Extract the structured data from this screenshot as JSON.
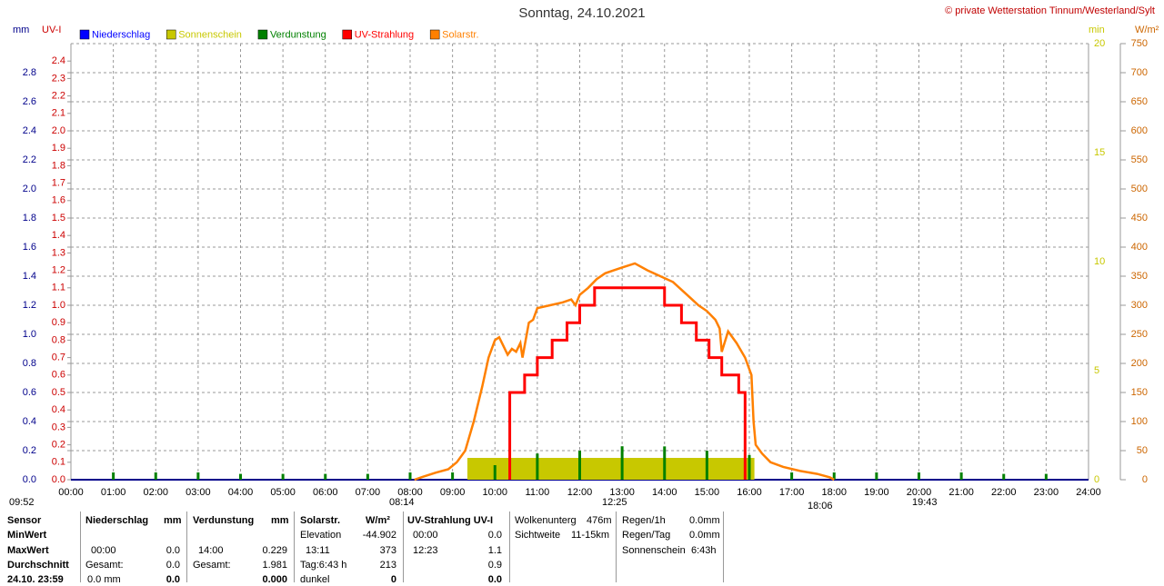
{
  "chart_data": {
    "type": "line",
    "title": "Sonntag, 24.10.2021",
    "copyright": "© private Wetterstation Tinnum/Westerland/Sylt",
    "axis_labels": {
      "mm": "mm",
      "uv": "UV-I",
      "min": "min",
      "wm2": "W/m²"
    },
    "xlim": [
      0,
      24
    ],
    "xticks": [
      {
        "value": 0,
        "label": "00:00"
      },
      {
        "value": 1,
        "label": "01:00"
      },
      {
        "value": 2,
        "label": "02:00"
      },
      {
        "value": 3,
        "label": "03:00"
      },
      {
        "value": 4,
        "label": "04:00"
      },
      {
        "value": 5,
        "label": "05:00"
      },
      {
        "value": 6,
        "label": "06:00"
      },
      {
        "value": 7,
        "label": "07:00"
      },
      {
        "value": 8,
        "label": "08:00"
      },
      {
        "value": 9,
        "label": "09:00"
      },
      {
        "value": 10,
        "label": "10:00"
      },
      {
        "value": 11,
        "label": "11:00"
      },
      {
        "value": 12,
        "label": "12:00"
      },
      {
        "value": 13,
        "label": "13:00"
      },
      {
        "value": 14,
        "label": "14:00"
      },
      {
        "value": 15,
        "label": "15:00"
      },
      {
        "value": 16,
        "label": "16:00"
      },
      {
        "value": 17,
        "label": "17:00"
      },
      {
        "value": 18,
        "label": "18:00"
      },
      {
        "value": 19,
        "label": "19:00"
      },
      {
        "value": 20,
        "label": "20:00"
      },
      {
        "value": 21,
        "label": "21:00"
      },
      {
        "value": 22,
        "label": "22:00"
      },
      {
        "value": 23,
        "label": "23:00"
      },
      {
        "value": 24,
        "label": "24:00"
      }
    ],
    "axes": {
      "mm": {
        "lim": [
          0,
          3.0
        ],
        "ticks": [
          {
            "value": 0,
            "label": "0.0"
          },
          {
            "value": 0.2,
            "label": "0.2"
          },
          {
            "value": 0.4,
            "label": "0.4"
          },
          {
            "value": 0.6,
            "label": "0.6"
          },
          {
            "value": 0.8,
            "label": "0.8"
          },
          {
            "value": 1.0,
            "label": "1.0"
          },
          {
            "value": 1.2,
            "label": "1.2"
          },
          {
            "value": 1.4,
            "label": "1.4"
          },
          {
            "value": 1.6,
            "label": "1.6"
          },
          {
            "value": 1.8,
            "label": "1.8"
          },
          {
            "value": 2.0,
            "label": "2.0"
          },
          {
            "value": 2.2,
            "label": "2.2"
          },
          {
            "value": 2.4,
            "label": "2.4"
          },
          {
            "value": 2.6,
            "label": "2.6"
          },
          {
            "value": 2.8,
            "label": "2.8"
          }
        ]
      },
      "uv": {
        "lim": [
          0,
          2.5
        ],
        "ticks": [
          {
            "value": 0,
            "label": "0.0"
          },
          {
            "value": 0.1,
            "label": "0.1"
          },
          {
            "value": 0.2,
            "label": "0.2"
          },
          {
            "value": 0.3,
            "label": "0.3"
          },
          {
            "value": 0.4,
            "label": "0.4"
          },
          {
            "value": 0.5,
            "label": "0.5"
          },
          {
            "value": 0.6,
            "label": "0.6"
          },
          {
            "value": 0.7,
            "label": "0.7"
          },
          {
            "value": 0.8,
            "label": "0.8"
          },
          {
            "value": 0.9,
            "label": "0.9"
          },
          {
            "value": 1.0,
            "label": "1.0"
          },
          {
            "value": 1.1,
            "label": "1.1"
          },
          {
            "value": 1.2,
            "label": "1.2"
          },
          {
            "value": 1.3,
            "label": "1.3"
          },
          {
            "value": 1.4,
            "label": "1.4"
          },
          {
            "value": 1.5,
            "label": "1.5"
          },
          {
            "value": 1.6,
            "label": "1.6"
          },
          {
            "value": 1.7,
            "label": "1.7"
          },
          {
            "value": 1.8,
            "label": "1.8"
          },
          {
            "value": 1.9,
            "label": "1.9"
          },
          {
            "value": 2.0,
            "label": "2.0"
          },
          {
            "value": 2.1,
            "label": "2.1"
          },
          {
            "value": 2.2,
            "label": "2.2"
          },
          {
            "value": 2.3,
            "label": "2.3"
          },
          {
            "value": 2.4,
            "label": "2.4"
          }
        ]
      },
      "min": {
        "lim": [
          0,
          20
        ],
        "ticks": [
          0,
          5,
          10,
          15,
          20
        ]
      },
      "wm2": {
        "lim": [
          0,
          750
        ],
        "ticks": [
          0,
          50,
          100,
          150,
          200,
          250,
          300,
          350,
          400,
          450,
          500,
          550,
          600,
          650,
          700,
          750
        ]
      }
    },
    "grid": true,
    "series": [
      {
        "name": "Niederschlag",
        "color": "#0000ff",
        "axis": "mm",
        "kind": "bar",
        "x": [],
        "values": []
      },
      {
        "name": "Sonnenschein",
        "color": "#c8c800",
        "axis": "min",
        "kind": "span",
        "x0": [
          9.35
        ],
        "x1": [
          16.12
        ],
        "values": [
          1
        ]
      },
      {
        "name": "Verdunstung",
        "color": "#008000",
        "axis": "mm",
        "kind": "bar",
        "x": [
          1,
          2,
          3,
          4,
          5,
          6,
          7,
          8,
          9,
          10,
          11,
          12,
          13,
          14,
          15,
          16,
          17,
          18,
          19,
          20,
          21,
          22,
          23
        ],
        "values": [
          0.05,
          0.05,
          0.05,
          0.04,
          0.04,
          0.04,
          0.04,
          0.05,
          0.05,
          0.1,
          0.18,
          0.2,
          0.23,
          0.229,
          0.2,
          0.17,
          0.05,
          0.05,
          0.05,
          0.05,
          0.05,
          0.04,
          0.04
        ]
      },
      {
        "name": "UV-Strahlung",
        "color": "#ff0000",
        "axis": "uv",
        "kind": "line",
        "x": [
          10.35,
          10.35,
          10.7,
          10.7,
          11.0,
          11.0,
          11.35,
          11.35,
          11.7,
          11.7,
          12.0,
          12.0,
          12.35,
          12.35,
          14.0,
          14.0,
          14.4,
          14.4,
          14.75,
          14.75,
          15.05,
          15.05,
          15.35,
          15.35,
          15.75,
          15.75,
          15.9,
          15.9
        ],
        "values": [
          0,
          0.5,
          0.5,
          0.6,
          0.6,
          0.7,
          0.7,
          0.8,
          0.8,
          0.9,
          0.9,
          1.0,
          1.0,
          1.1,
          1.1,
          1.0,
          1.0,
          0.9,
          0.9,
          0.8,
          0.8,
          0.7,
          0.7,
          0.6,
          0.6,
          0.5,
          0.5,
          0
        ]
      },
      {
        "name": "Solarstr.",
        "color": "#ff8000",
        "axis": "wm2",
        "kind": "line",
        "x": [
          8.1,
          8.3,
          8.6,
          8.9,
          9.1,
          9.3,
          9.5,
          9.7,
          9.85,
          10.0,
          10.1,
          10.2,
          10.3,
          10.4,
          10.5,
          10.6,
          10.65,
          10.75,
          10.8,
          10.9,
          11.0,
          11.3,
          11.6,
          11.8,
          11.9,
          12.0,
          12.2,
          12.4,
          12.6,
          12.8,
          13.0,
          13.3,
          13.6,
          13.9,
          14.2,
          14.5,
          14.8,
          15.0,
          15.2,
          15.3,
          15.35,
          15.5,
          15.7,
          15.9,
          16.05,
          16.1,
          16.15,
          16.3,
          16.5,
          16.8,
          17.2,
          17.6,
          17.9,
          18.0
        ],
        "values": [
          0,
          5,
          12,
          18,
          30,
          50,
          100,
          160,
          210,
          240,
          245,
          230,
          215,
          225,
          220,
          235,
          210,
          250,
          270,
          275,
          295,
          300,
          305,
          310,
          300,
          318,
          330,
          345,
          355,
          360,
          365,
          372,
          360,
          350,
          340,
          320,
          300,
          290,
          275,
          260,
          220,
          255,
          235,
          210,
          180,
          100,
          60,
          45,
          30,
          22,
          15,
          10,
          4,
          0
        ]
      }
    ],
    "markers": [
      "09:52",
      "08:14",
      "12:25",
      "18:06",
      "19:43"
    ]
  },
  "stats": {
    "labels": [
      "Sensor",
      "MinWert",
      "MaxWert",
      "Durchschnitt",
      "24.10. 23:59"
    ],
    "niederschlag": [
      "Niederschlag",
      "mm",
      "00:00",
      "0.0",
      "Gesamt:",
      "0.0",
      "0.0 mm",
      "0.0"
    ],
    "verdunstung": [
      "Verdunstung",
      "mm",
      "14:00",
      "0.229",
      "Gesamt:",
      "1.981",
      "0.000"
    ],
    "solar": [
      "Solarstr.",
      "W/m²",
      "Elevation",
      "-44.902",
      "13:11",
      "373",
      "Tag:6:43 h",
      "213",
      "dunkel",
      "0"
    ],
    "uv": [
      "UV-Strahlung UV-I",
      "00:00",
      "0.0",
      "12:23",
      "1.1",
      "0.9",
      "0.0"
    ],
    "wolken": [
      "Wolkenunterg",
      "476m",
      "Sichtweite",
      "11-15km"
    ],
    "regen": [
      "Regen/1h",
      "0.0mm",
      "Regen/Tag",
      "0.0mm",
      "Sonnenschein",
      "6:43h"
    ]
  }
}
